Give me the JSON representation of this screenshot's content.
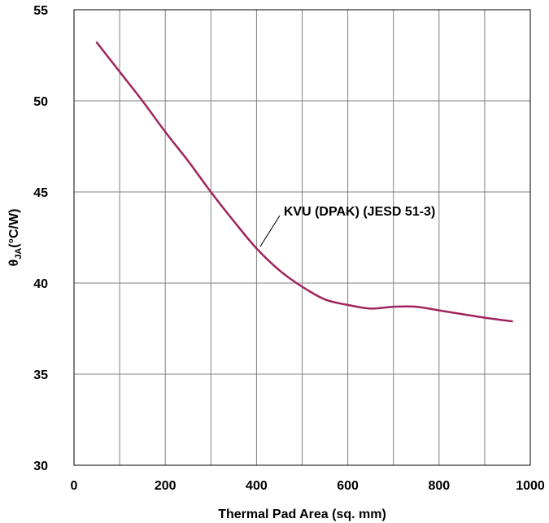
{
  "chart_data": {
    "type": "line",
    "xlabel": "Thermal Pad Area (sq. mm)",
    "ylabel": {
      "symbol": "θ",
      "subscript": "JA",
      "unit": "(°C/W)"
    },
    "xlim": [
      0,
      1000
    ],
    "ylim": [
      30,
      55
    ],
    "xticks": [
      0,
      200,
      400,
      600,
      800,
      1000
    ],
    "yticks": [
      30,
      35,
      40,
      45,
      50,
      55
    ],
    "x_gridlines": [
      0,
      100,
      200,
      300,
      400,
      500,
      600,
      700,
      800,
      900,
      1000
    ],
    "y_gridlines": [
      30,
      35,
      40,
      45,
      50,
      55
    ],
    "grid": true,
    "colors": {
      "line": "#A0245E",
      "grid": "#808080",
      "frame": "#000000"
    },
    "series": [
      {
        "name": "KVU (DPAK) (JESD 51-3)",
        "x": [
          50,
          100,
          150,
          200,
          250,
          300,
          350,
          400,
          450,
          500,
          550,
          600,
          650,
          700,
          750,
          800,
          850,
          900,
          960
        ],
        "y": [
          53.2,
          51.6,
          50.0,
          48.3,
          46.7,
          45.0,
          43.4,
          41.9,
          40.7,
          39.8,
          39.1,
          38.8,
          38.6,
          38.7,
          38.7,
          38.5,
          38.3,
          38.1,
          37.9
        ]
      }
    ],
    "annotations": [
      {
        "text": "KVU (DPAK) (JESD 51-3)",
        "x": 408,
        "y": 42.0
      }
    ]
  }
}
